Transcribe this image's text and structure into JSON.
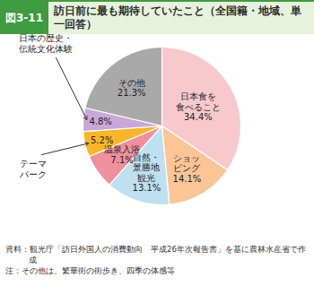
{
  "chart_data": {
    "type": "pie",
    "figure_number": "図3-11",
    "title": "訪日前に最も期待していたこと（全国籍・地域、単一回答）",
    "categories": [
      "日本食を\n食べること",
      "ショッ\nピング",
      "自然・\n景勝地\n観光",
      "温泉入浴",
      "テーマ\nパーク",
      "日本の歴史・\n伝統文化体験",
      "その他"
    ],
    "values": [
      34.4,
      14.1,
      13.1,
      7.1,
      5.2,
      4.8,
      21.3
    ],
    "value_labels": [
      "34.4%",
      "14.1%",
      "13.1%",
      "7.1%",
      "5.2%",
      "4.8%",
      "21.3%"
    ],
    "colors": [
      "#f7c9cc",
      "#fbc596",
      "#bfe0f1",
      "#f0909c",
      "#f8b628",
      "#c9a8d8",
      "#a9a9a9"
    ],
    "data_labels": true,
    "source": "資料：観光庁「訪日外国人の消費動向　平成26年次報告書」を基に農林水産省で作成",
    "note": "注：その他は、繁華街の街歩き、四季の体感等"
  }
}
